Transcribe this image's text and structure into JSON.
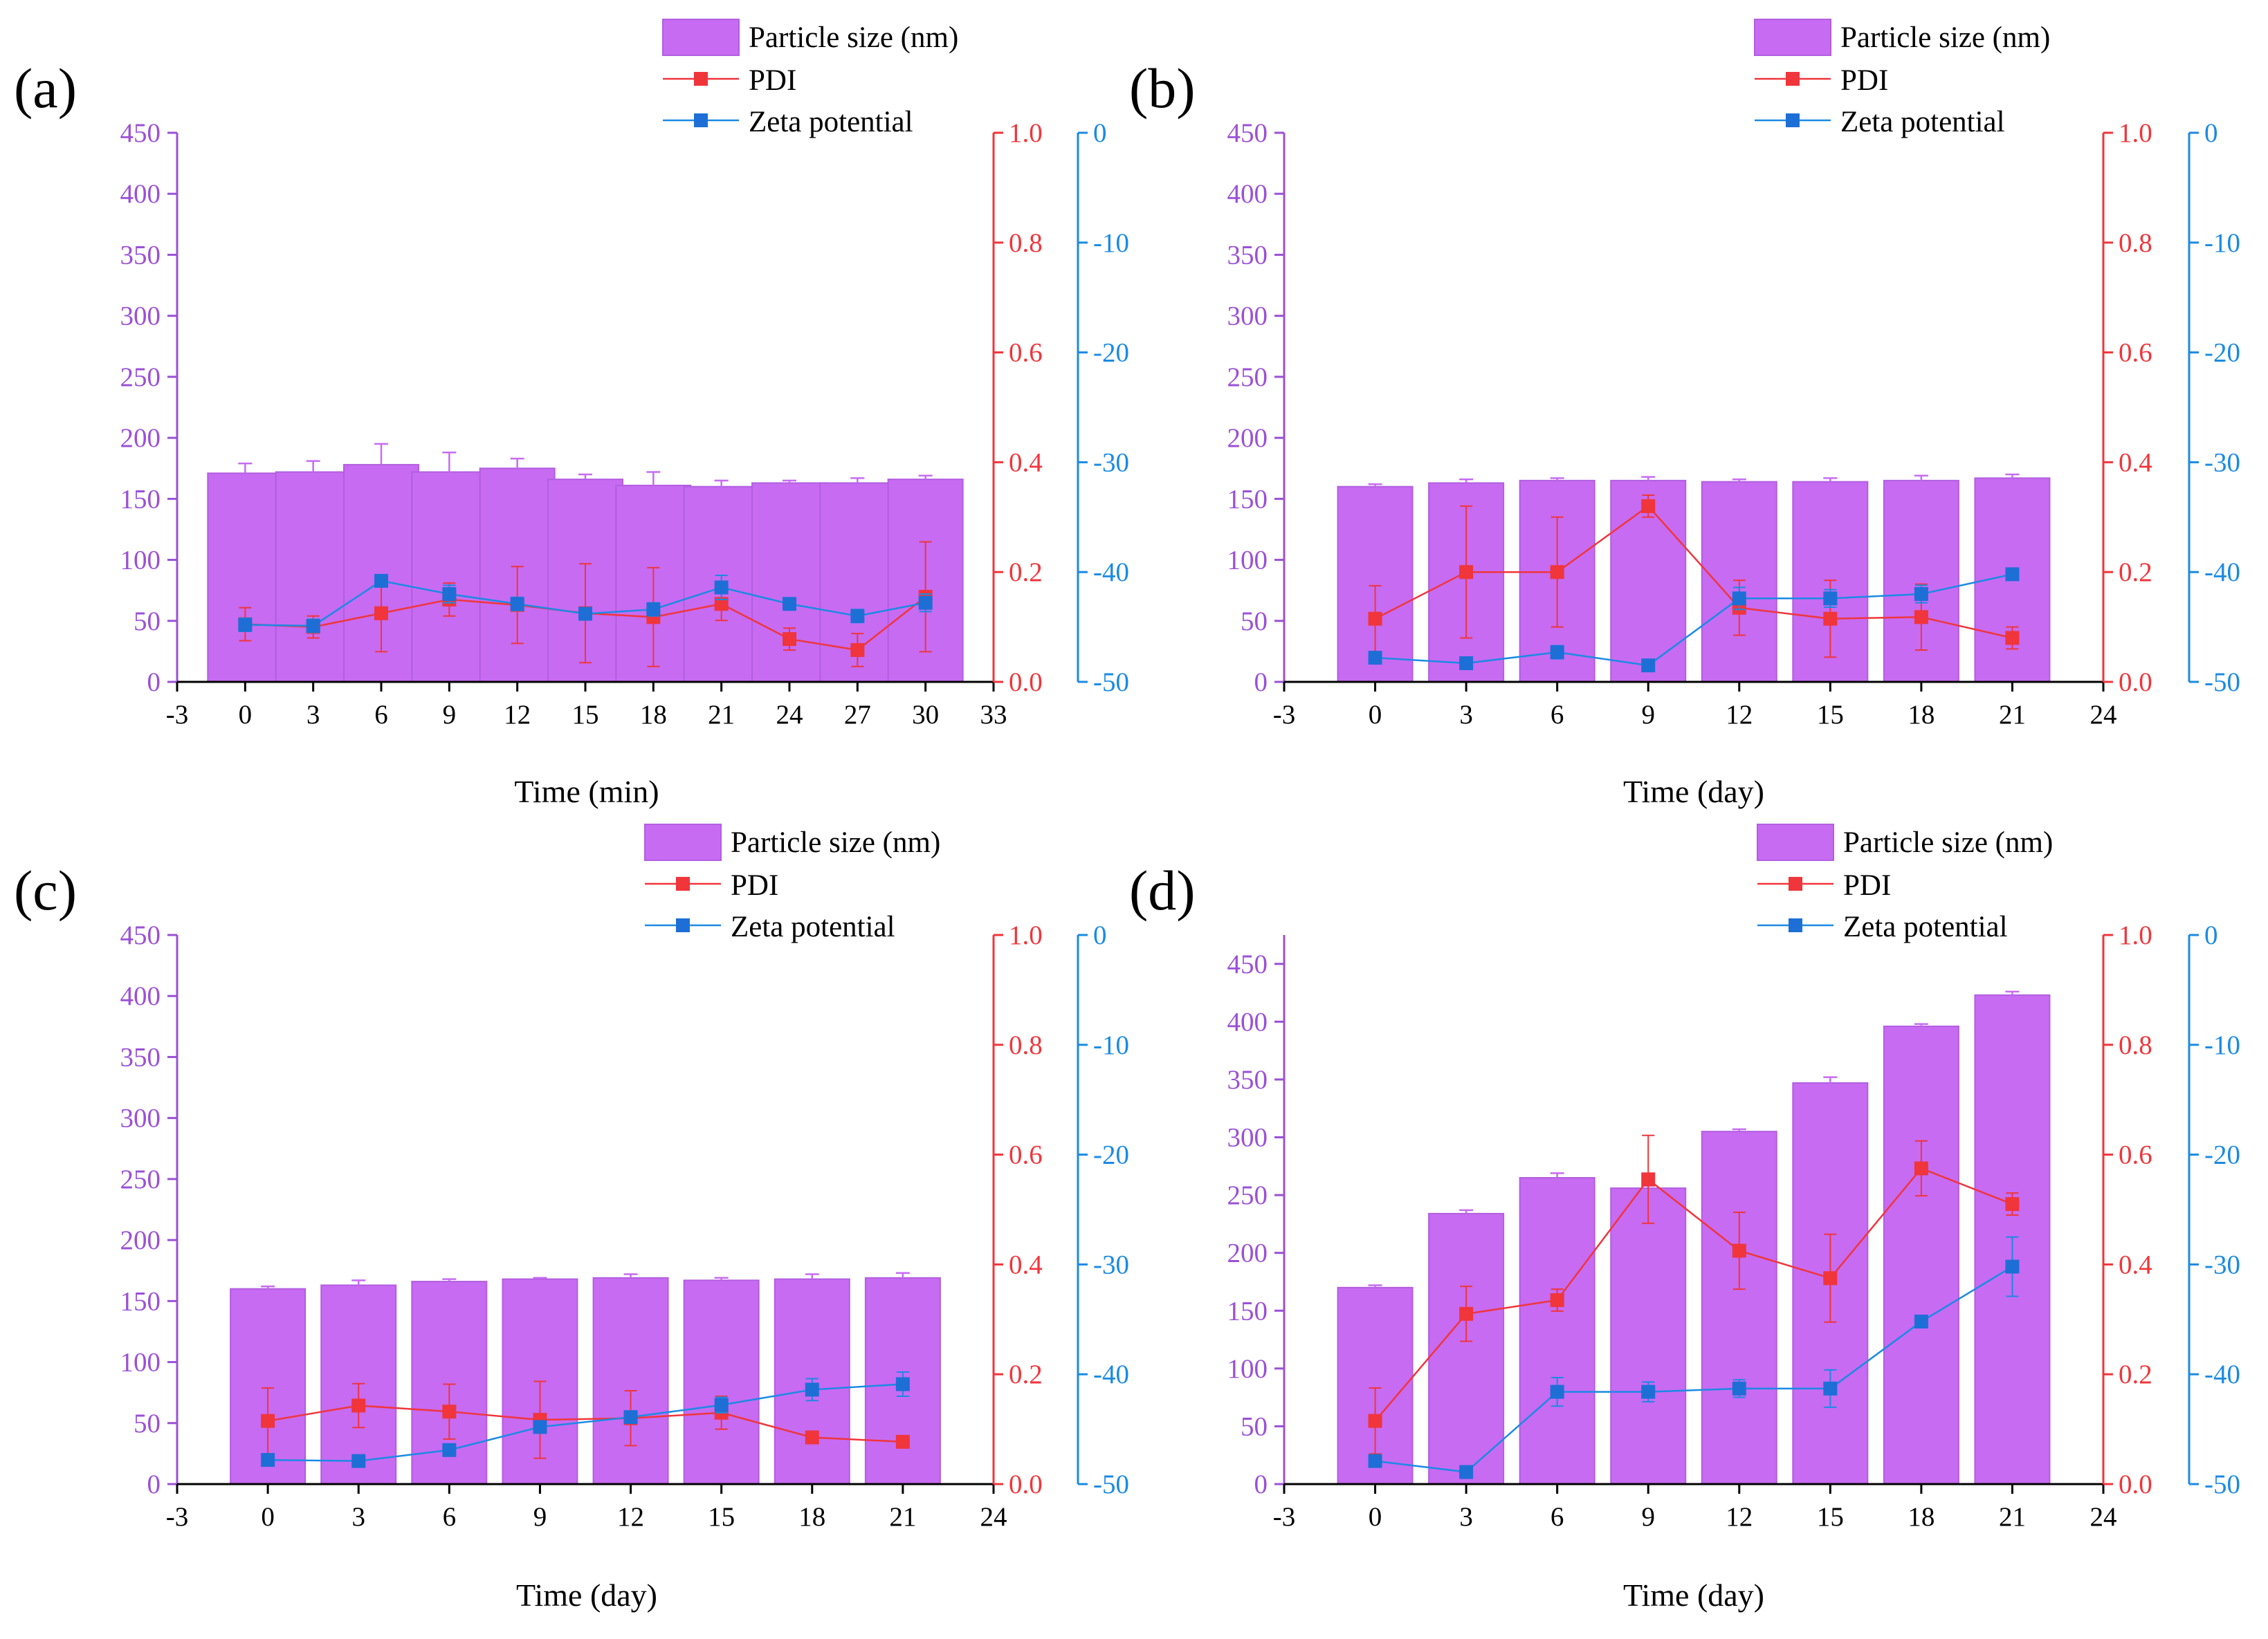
{
  "colors": {
    "size_axis": "#9b50d6",
    "bar_fill": "#c76bf2",
    "bar_stroke": "#b25ee0",
    "pdi": "#f0353b",
    "zeta": "#1a8ae3",
    "zeta_marker": "#1d6fd6",
    "axis_black": "#000000"
  },
  "legend": {
    "size": "Particle size (nm)",
    "pdi": "PDI",
    "zeta": "Zeta potential"
  },
  "chart_data": [
    {
      "label": "(a)",
      "type": "bar+line",
      "xlabel": "Time (min)",
      "x_ticks": [
        "-3",
        "0",
        "3",
        "6",
        "9",
        "12",
        "15",
        "18",
        "21",
        "24",
        "27",
        "30",
        "33"
      ],
      "xlim": [
        -3,
        33
      ],
      "x": [
        0,
        3,
        6,
        9,
        12,
        15,
        18,
        21,
        24,
        27,
        30
      ],
      "size_ylim": [
        0,
        450
      ],
      "size_ticks": [
        "0",
        "50",
        "100",
        "150",
        "200",
        "250",
        "300",
        "350",
        "400",
        "450"
      ],
      "pdi_ylim": [
        0,
        1.0
      ],
      "pdi_ticks": [
        "0.0",
        "0.2",
        "0.4",
        "0.6",
        "0.8",
        "1.0"
      ],
      "zeta_ylim": [
        -50,
        0
      ],
      "zeta_ticks": [
        "-50",
        "-40",
        "-30",
        "-20",
        "-10",
        "0"
      ],
      "series": [
        {
          "name": "Particle size (nm)",
          "type": "bar",
          "values": [
            171,
            172,
            178,
            172,
            175,
            166,
            161,
            160,
            163,
            163,
            166
          ],
          "errors": [
            8,
            9,
            17,
            16,
            8,
            4,
            11,
            5,
            2,
            4,
            3
          ]
        },
        {
          "name": "PDI",
          "type": "line",
          "values": [
            0.105,
            0.1,
            0.125,
            0.15,
            0.14,
            0.125,
            0.118,
            0.142,
            0.078,
            0.058,
            0.155
          ],
          "errors": [
            0.03,
            0.02,
            0.07,
            0.03,
            0.07,
            0.09,
            0.09,
            0.03,
            0.02,
            0.03,
            0.1
          ]
        },
        {
          "name": "Zeta potential",
          "type": "line",
          "values": [
            -44.8,
            -44.9,
            -40.8,
            -42.0,
            -42.9,
            -43.8,
            -43.4,
            -41.4,
            -42.9,
            -44.0,
            -42.8
          ],
          "errors": [
            0.6,
            0.6,
            0.5,
            0.8,
            0.6,
            0.5,
            0.6,
            1.1,
            0.5,
            0.6,
            0.8
          ]
        }
      ]
    },
    {
      "label": "(b)",
      "type": "bar+line",
      "xlabel": "Time (day)",
      "x_ticks": [
        "-3",
        "0",
        "3",
        "6",
        "9",
        "12",
        "15",
        "18",
        "21",
        "24"
      ],
      "xlim": [
        -3,
        24
      ],
      "x": [
        0,
        3,
        6,
        9,
        12,
        15,
        18,
        21
      ],
      "size_ylim": [
        0,
        450
      ],
      "size_ticks": [
        "0",
        "50",
        "100",
        "150",
        "200",
        "250",
        "300",
        "350",
        "400",
        "450"
      ],
      "pdi_ylim": [
        0,
        1.0
      ],
      "pdi_ticks": [
        "0.0",
        "0.2",
        "0.4",
        "0.6",
        "0.8",
        "1.0"
      ],
      "zeta_ylim": [
        -50,
        0
      ],
      "zeta_ticks": [
        "-50",
        "-40",
        "-30",
        "-20",
        "-10",
        "0"
      ],
      "series": [
        {
          "name": "Particle size (nm)",
          "type": "bar",
          "values": [
            160,
            163,
            165,
            165,
            164,
            164,
            165,
            167
          ],
          "errors": [
            2,
            3,
            2,
            3,
            2,
            3,
            4,
            3
          ]
        },
        {
          "name": "PDI",
          "type": "line",
          "values": [
            0.115,
            0.2,
            0.2,
            0.32,
            0.135,
            0.115,
            0.118,
            0.08
          ],
          "errors": [
            0.06,
            0.12,
            0.1,
            0.02,
            0.05,
            0.07,
            0.06,
            0.02
          ]
        },
        {
          "name": "Zeta potential",
          "type": "line",
          "values": [
            -47.8,
            -48.3,
            -47.3,
            -48.5,
            -42.4,
            -42.4,
            -42.0,
            -40.2
          ],
          "errors": [
            0.4,
            0.4,
            0.6,
            0.3,
            1.0,
            0.8,
            0.8,
            0.5
          ]
        }
      ]
    },
    {
      "label": "(c)",
      "type": "bar+line",
      "xlabel": "Time (day)",
      "x_ticks": [
        "-3",
        "0",
        "3",
        "6",
        "9",
        "12",
        "15",
        "18",
        "21",
        "24"
      ],
      "xlim": [
        -3,
        24
      ],
      "x": [
        0,
        3,
        6,
        9,
        12,
        15,
        18,
        21
      ],
      "size_ylim": [
        0,
        450
      ],
      "size_ticks": [
        "0",
        "50",
        "100",
        "150",
        "200",
        "250",
        "300",
        "350",
        "400",
        "450"
      ],
      "pdi_ylim": [
        0,
        1.0
      ],
      "pdi_ticks": [
        "0.0",
        "0.2",
        "0.4",
        "0.6",
        "0.8",
        "1.0"
      ],
      "zeta_ylim": [
        -50,
        0
      ],
      "zeta_ticks": [
        "-50",
        "-40",
        "-30",
        "-20",
        "-10",
        "0"
      ],
      "series": [
        {
          "name": "Particle size (nm)",
          "type": "bar",
          "values": [
            160,
            163,
            166,
            168,
            169,
            167,
            168,
            169
          ],
          "errors": [
            2,
            4,
            2,
            1,
            3,
            2,
            4,
            4
          ]
        },
        {
          "name": "PDI",
          "type": "line",
          "values": [
            0.115,
            0.143,
            0.132,
            0.117,
            0.12,
            0.13,
            0.085,
            0.077
          ],
          "errors": [
            0.06,
            0.04,
            0.05,
            0.07,
            0.05,
            0.03,
            0.01,
            0.01
          ]
        },
        {
          "name": "Zeta potential",
          "type": "line",
          "values": [
            -47.8,
            -47.9,
            -46.9,
            -44.8,
            -43.9,
            -42.8,
            -41.4,
            -40.9
          ],
          "errors": [
            0.3,
            0.3,
            0.3,
            0.4,
            0.4,
            0.7,
            1.0,
            1.1
          ]
        }
      ]
    },
    {
      "label": "(d)",
      "type": "bar+line",
      "xlabel": "Time (day)",
      "x_ticks": [
        "-3",
        "0",
        "3",
        "6",
        "9",
        "12",
        "15",
        "18",
        "21",
        "24"
      ],
      "xlim": [
        -3,
        24
      ],
      "x": [
        0,
        3,
        6,
        9,
        12,
        15,
        18,
        21
      ],
      "size_ylim": [
        0,
        475
      ],
      "size_ticks": [
        "0",
        "50",
        "100",
        "150",
        "200",
        "250",
        "300",
        "350",
        "400",
        "450"
      ],
      "pdi_ylim": [
        0,
        1.0
      ],
      "pdi_ticks": [
        "0.0",
        "0.2",
        "0.4",
        "0.6",
        "0.8",
        "1.0"
      ],
      "zeta_ylim": [
        -50,
        0
      ],
      "zeta_ticks": [
        "-50",
        "-40",
        "-30",
        "-20",
        "-10",
        "0"
      ],
      "series": [
        {
          "name": "Particle size (nm)",
          "type": "bar",
          "values": [
            170,
            234,
            265,
            256,
            305,
            347,
            396,
            423
          ],
          "errors": [
            2,
            3,
            4,
            2,
            2,
            5,
            2,
            3
          ]
        },
        {
          "name": "PDI",
          "type": "line",
          "values": [
            0.115,
            0.31,
            0.335,
            0.555,
            0.425,
            0.375,
            0.575,
            0.51
          ],
          "errors": [
            0.06,
            0.05,
            0.02,
            0.08,
            0.07,
            0.08,
            0.05,
            0.02
          ]
        },
        {
          "name": "Zeta potential",
          "type": "line",
          "values": [
            -47.9,
            -48.9,
            -41.6,
            -41.6,
            -41.3,
            -41.3,
            -35.2,
            -30.2
          ],
          "errors": [
            0.3,
            0.3,
            1.3,
            0.9,
            0.8,
            1.7,
            0.4,
            2.7
          ]
        }
      ]
    }
  ]
}
